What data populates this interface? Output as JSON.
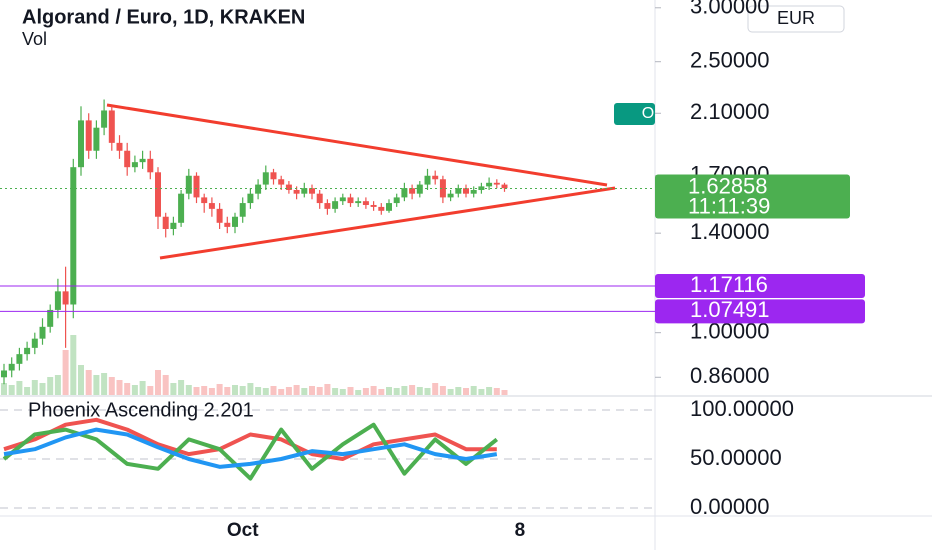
{
  "chart_data": {
    "type": "candlestick",
    "title": "Algorand / Euro, 1D, KRAKEN",
    "volume_label": "Vol",
    "currency_button": "EUR",
    "side_button": "O",
    "log_scale": true,
    "up_color": "#4caf50",
    "down_color": "#ef5350",
    "categories": [
      null,
      null,
      null,
      null,
      null,
      null,
      null,
      null,
      null,
      null,
      null,
      null,
      null,
      null,
      null,
      null,
      null,
      null,
      null,
      null,
      null,
      null,
      null,
      null,
      null,
      null,
      null,
      null,
      null,
      null,
      null,
      "Oct",
      null,
      null,
      null,
      null,
      null,
      null,
      null,
      null,
      null,
      null,
      null,
      null,
      null,
      null,
      null,
      null,
      null,
      null,
      null,
      null,
      null,
      null,
      null,
      null,
      null,
      null,
      null,
      null,
      null,
      null,
      null,
      null,
      null,
      null,
      null,
      "8"
    ],
    "open": [
      0.86,
      0.88,
      0.9,
      0.93,
      0.95,
      0.98,
      1.02,
      1.08,
      1.15,
      1.1,
      1.75,
      2.05,
      1.85,
      2.0,
      2.12,
      1.9,
      1.85,
      1.75,
      1.78,
      1.8,
      1.72,
      1.48,
      1.42,
      1.45,
      1.6,
      1.7,
      1.58,
      1.55,
      1.52,
      1.45,
      1.43,
      1.48,
      1.55,
      1.6,
      1.65,
      1.72,
      1.68,
      1.65,
      1.62,
      1.6,
      1.63,
      1.6,
      1.55,
      1.52,
      1.56,
      1.58,
      1.55,
      1.56,
      1.54,
      1.53,
      1.51,
      1.55,
      1.58,
      1.63,
      1.6,
      1.65,
      1.7,
      1.68,
      1.58,
      1.6,
      1.63,
      1.6,
      1.62,
      1.64,
      1.66,
      1.65,
      null,
      null
    ],
    "high": [
      0.9,
      0.92,
      0.95,
      0.97,
      1.0,
      1.05,
      1.1,
      1.2,
      1.25,
      1.8,
      2.15,
      2.1,
      2.05,
      2.2,
      2.15,
      1.95,
      1.9,
      1.82,
      1.85,
      1.85,
      1.75,
      1.5,
      1.48,
      1.62,
      1.74,
      1.72,
      1.6,
      1.58,
      1.55,
      1.48,
      1.5,
      1.58,
      1.63,
      1.68,
      1.76,
      1.74,
      1.7,
      1.67,
      1.64,
      1.66,
      1.65,
      1.62,
      1.57,
      1.58,
      1.6,
      1.6,
      1.58,
      1.58,
      1.56,
      1.55,
      1.57,
      1.6,
      1.66,
      1.65,
      1.67,
      1.74,
      1.73,
      1.7,
      1.62,
      1.65,
      1.65,
      1.64,
      1.66,
      1.69,
      1.68,
      1.66,
      null,
      null
    ],
    "low": [
      0.84,
      0.86,
      0.88,
      0.91,
      0.93,
      0.96,
      1.0,
      1.05,
      0.95,
      1.05,
      1.7,
      1.8,
      1.8,
      1.95,
      1.85,
      1.8,
      1.7,
      1.72,
      1.74,
      1.68,
      1.42,
      1.38,
      1.39,
      1.43,
      1.57,
      1.55,
      1.5,
      1.48,
      1.42,
      1.4,
      1.4,
      1.45,
      1.52,
      1.57,
      1.62,
      1.65,
      1.62,
      1.6,
      1.57,
      1.58,
      1.57,
      1.52,
      1.49,
      1.5,
      1.54,
      1.53,
      1.53,
      1.52,
      1.51,
      1.49,
      1.5,
      1.53,
      1.56,
      1.57,
      1.58,
      1.62,
      1.65,
      1.55,
      1.56,
      1.58,
      1.58,
      1.58,
      1.6,
      1.62,
      1.63,
      1.61,
      null,
      null
    ],
    "close": [
      0.88,
      0.9,
      0.93,
      0.95,
      0.98,
      1.02,
      1.08,
      1.15,
      1.1,
      1.75,
      2.05,
      1.85,
      2.0,
      2.12,
      1.9,
      1.85,
      1.75,
      1.78,
      1.8,
      1.72,
      1.48,
      1.42,
      1.45,
      1.6,
      1.7,
      1.58,
      1.55,
      1.52,
      1.45,
      1.43,
      1.48,
      1.55,
      1.6,
      1.65,
      1.72,
      1.68,
      1.65,
      1.62,
      1.6,
      1.63,
      1.6,
      1.55,
      1.52,
      1.56,
      1.58,
      1.55,
      1.56,
      1.54,
      1.53,
      1.51,
      1.55,
      1.58,
      1.63,
      1.6,
      1.65,
      1.7,
      1.68,
      1.58,
      1.6,
      1.63,
      1.6,
      1.62,
      1.64,
      1.66,
      1.65,
      1.63,
      null,
      null
    ],
    "volume": [
      12,
      10,
      14,
      8,
      15,
      12,
      18,
      20,
      45,
      60,
      30,
      25,
      20,
      22,
      18,
      15,
      12,
      10,
      14,
      9,
      25,
      20,
      12,
      15,
      10,
      8,
      9,
      7,
      11,
      8,
      10,
      9,
      12,
      8,
      7,
      9,
      6,
      8,
      10,
      7,
      9,
      8,
      11,
      7,
      6,
      8,
      5,
      7,
      9,
      6,
      8,
      7,
      9,
      10,
      8,
      7,
      12,
      9,
      6,
      8,
      7,
      9,
      6,
      8,
      7,
      5,
      null,
      null
    ],
    "ylim": [
      0.81,
      3.08
    ],
    "yticks": [
      {
        "value": 3,
        "label": "3.00000"
      },
      {
        "value": 2.5,
        "label": "2.50000"
      },
      {
        "value": 2.1,
        "label": "2.10000"
      },
      {
        "value": 1.7,
        "label": "1.70000"
      },
      {
        "value": 1.4,
        "label": "1.40000"
      },
      {
        "value": 1,
        "label": "1.00000"
      },
      {
        "value": 0.86,
        "label": "0.86000"
      }
    ],
    "last_price": {
      "value": 1.62858,
      "countdown": "11:11:39",
      "color": "#4caf50"
    },
    "levels": [
      {
        "value": 1.17116,
        "color": "#9c27f0"
      },
      {
        "value": 1.07491,
        "color": "#9c27f0"
      }
    ],
    "indicator": {
      "type": "line",
      "title": "Phoenix Ascending 2.201",
      "x": [
        0,
        4,
        8,
        12,
        16,
        20,
        24,
        28,
        32,
        36,
        40,
        44,
        48,
        52,
        56,
        60,
        64
      ],
      "series": [
        {
          "color": "#ef5350",
          "values": [
            60,
            70,
            85,
            90,
            80,
            65,
            55,
            60,
            75,
            70,
            55,
            50,
            65,
            70,
            75,
            60,
            60
          ]
        },
        {
          "color": "#4caf50",
          "values": [
            50,
            75,
            80,
            70,
            45,
            40,
            70,
            60,
            30,
            80,
            40,
            65,
            85,
            35,
            70,
            45,
            70
          ]
        },
        {
          "color": "#2196f3",
          "values": [
            55,
            60,
            72,
            80,
            75,
            62,
            50,
            42,
            45,
            50,
            58,
            55,
            60,
            65,
            55,
            50,
            55
          ]
        }
      ],
      "ylim": [
        0,
        100
      ],
      "yticks": [
        {
          "value": 100,
          "label": "100.00000"
        },
        {
          "value": 50,
          "label": "50.00000"
        },
        {
          "value": 0,
          "label": "0.00000"
        }
      ]
    }
  }
}
